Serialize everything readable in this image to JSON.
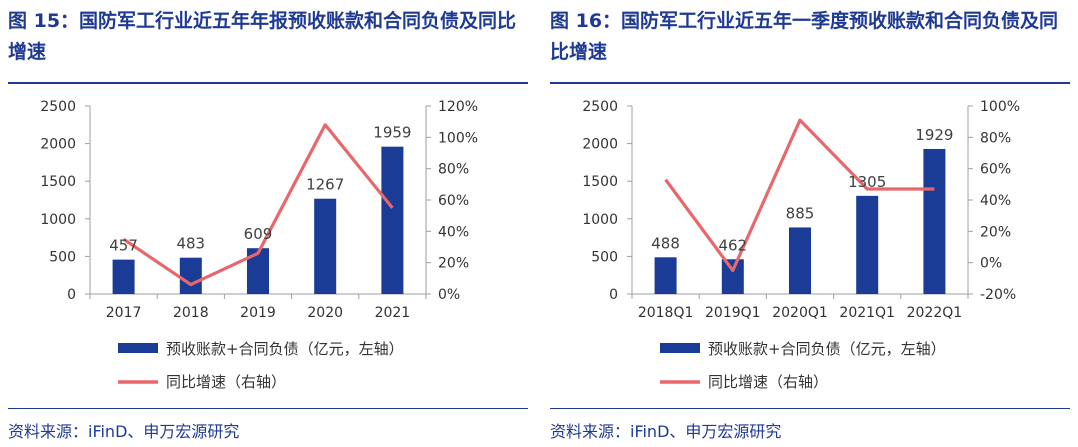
{
  "colors": {
    "title": "#1f3a93",
    "bar": "#1a3c96",
    "line": "#e8676b",
    "axis_text": "#333333",
    "label_text": "#404040"
  },
  "footer": {
    "source": "资料来源：iFinD、申万宏源研究"
  },
  "charts": [
    {
      "title": "图 15：国防军工行业近五年年报预收账款和合同负债及同比增速",
      "chart_data": {
        "type": "bar",
        "categories": [
          "2017",
          "2018",
          "2019",
          "2020",
          "2021"
        ],
        "series": [
          {
            "name": "预收账款+合同负债（亿元，左轴）",
            "type": "bar",
            "axis": "left",
            "values": [
              457,
              483,
              609,
              1267,
              1959
            ]
          },
          {
            "name": "同比增速（右轴）",
            "type": "line",
            "axis": "right",
            "values": [
              35,
              6,
              26,
              108,
              55
            ]
          }
        ],
        "y_left": {
          "range": [
            0,
            2500
          ],
          "ticks": [
            "0",
            "500",
            "1000",
            "1500",
            "2000",
            "2500"
          ]
        },
        "y_right": {
          "range": [
            0,
            120
          ],
          "ticks": [
            "0%",
            "20%",
            "40%",
            "60%",
            "80%",
            "100%",
            "120%"
          ]
        },
        "data_labels": [
          "457",
          "483",
          "609",
          "1267",
          "1959"
        ],
        "legend_position": "bottom",
        "grid": false
      }
    },
    {
      "title": "图 16：国防军工行业近五年一季度预收账款和合同负债及同比增速",
      "chart_data": {
        "type": "bar",
        "categories": [
          "2018Q1",
          "2019Q1",
          "2020Q1",
          "2021Q1",
          "2022Q1"
        ],
        "series": [
          {
            "name": "预收账款+合同负债（亿元，左轴）",
            "type": "bar",
            "axis": "left",
            "values": [
              488,
              462,
              885,
              1305,
              1929
            ]
          },
          {
            "name": "同比增速（右轴）",
            "type": "line",
            "axis": "right",
            "values": [
              53,
              -5,
              91,
              47,
              47
            ]
          }
        ],
        "y_left": {
          "range": [
            0,
            2500
          ],
          "ticks": [
            "0",
            "500",
            "1000",
            "1500",
            "2000",
            "2500"
          ]
        },
        "y_right": {
          "range": [
            -20,
            100
          ],
          "ticks": [
            "-20%",
            "0%",
            "20%",
            "40%",
            "60%",
            "80%",
            "100%"
          ]
        },
        "data_labels": [
          "488",
          "462",
          "885",
          "1305",
          "1929"
        ],
        "legend_position": "bottom",
        "grid": false
      }
    }
  ]
}
